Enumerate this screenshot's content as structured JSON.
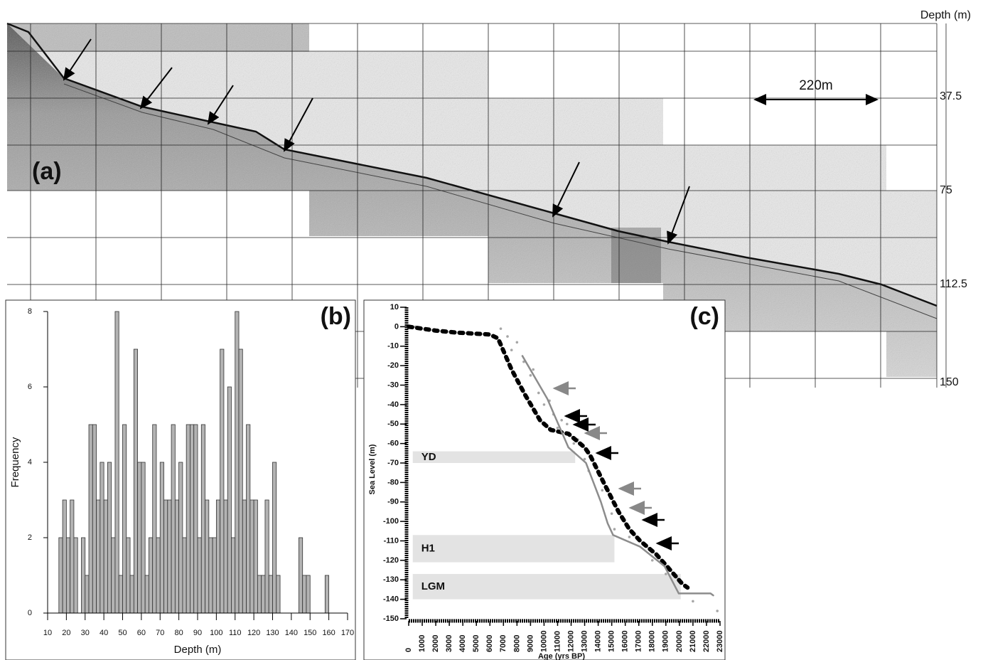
{
  "profile": {
    "label": "(a)",
    "depth_axis_title": "Depth (m)",
    "depth_ticks": [
      "37.5",
      "75",
      "112.5",
      "150"
    ],
    "scale_bar": "220m"
  },
  "chart_data": [
    {
      "type": "histogram",
      "label": "(b)",
      "x_label": "Depth (m)",
      "y_label": "Frequency",
      "color": "#b3b3b3",
      "bins": [
        16,
        18,
        20,
        22,
        24,
        26,
        28,
        30,
        32,
        34,
        36,
        38,
        40,
        42,
        44,
        46,
        48,
        50,
        52,
        54,
        56,
        58,
        60,
        62,
        64,
        66,
        68,
        70,
        72,
        74,
        76,
        78,
        80,
        82,
        84,
        86,
        88,
        90,
        92,
        94,
        96,
        98,
        100,
        102,
        104,
        106,
        108,
        110,
        112,
        114,
        116,
        118,
        120,
        122,
        124,
        126,
        128,
        130,
        132,
        134,
        136,
        138,
        140,
        142,
        144,
        146,
        148,
        150,
        152,
        154,
        156,
        158,
        160
      ],
      "values": [
        2,
        3,
        2,
        3,
        2,
        0,
        2,
        1,
        5,
        5,
        3,
        4,
        3,
        4,
        2,
        8,
        1,
        5,
        2,
        1,
        7,
        4,
        4,
        1,
        2,
        5,
        2,
        4,
        3,
        3,
        5,
        3,
        4,
        2,
        5,
        5,
        5,
        2,
        5,
        3,
        2,
        2,
        3,
        7,
        3,
        6,
        2,
        8,
        7,
        3,
        5,
        3,
        3,
        1,
        1,
        3,
        1,
        4,
        1,
        0,
        0,
        0,
        0,
        0,
        2,
        1,
        1,
        0,
        0,
        0,
        0,
        1
      ],
      "xlim": [
        10,
        170
      ],
      "xticks": [
        10,
        20,
        30,
        40,
        50,
        60,
        70,
        80,
        90,
        100,
        110,
        120,
        130,
        140,
        150,
        160,
        170
      ],
      "ylim": [
        0,
        8
      ],
      "yticks": [
        0,
        2,
        4,
        6,
        8
      ]
    },
    {
      "type": "line",
      "label": "(c)",
      "x_label": "Age (yrs BP)",
      "y_label": "Sea Level (m)",
      "xlim": [
        0,
        23000
      ],
      "xticks": [
        0,
        1000,
        2000,
        3000,
        4000,
        5000,
        6000,
        7000,
        8000,
        9000,
        10000,
        11000,
        12000,
        13000,
        14000,
        15000,
        16000,
        17000,
        18000,
        19000,
        20000,
        21000,
        22000,
        23000
      ],
      "ylim": [
        -150,
        10
      ],
      "yticks": [
        -150,
        -140,
        -130,
        -120,
        -110,
        -100,
        -90,
        -80,
        -70,
        -60,
        -50,
        -40,
        -30,
        -20,
        -10,
        0,
        10
      ],
      "bands": [
        {
          "label": "YD",
          "ylim": [
            -64,
            -70
          ],
          "xlim": [
            300,
            12300
          ]
        },
        {
          "label": "H1",
          "ylim": [
            -107,
            -121
          ],
          "xlim": [
            300,
            15200
          ]
        },
        {
          "label": "LGM",
          "ylim": [
            -127,
            -140
          ],
          "xlim": [
            300,
            20100
          ]
        }
      ],
      "series": [
        {
          "style": "points",
          "color": "#a6a6a6",
          "x": [
            500,
            6800,
            7300,
            7600,
            8000,
            8500,
            9000,
            9200,
            9600,
            10000,
            10400,
            10700,
            11000,
            11300,
            11700,
            12200,
            12500,
            13000,
            13300,
            14300,
            15000,
            15200,
            16300,
            17500,
            18000,
            19000,
            21000,
            22800
          ],
          "values": [
            0,
            -1,
            -5,
            -12,
            -8,
            -18,
            -25,
            -22,
            -34,
            -40,
            -38,
            -45,
            -52,
            -48,
            -50,
            -60,
            -58,
            -68,
            -74,
            -84,
            -96,
            -104,
            -108,
            -112,
            -120,
            -127,
            -141,
            -146
          ]
        },
        {
          "style": "dashed",
          "color": "#000000",
          "x": [
            0,
            2000,
            3500,
            6000,
            6600,
            7600,
            8600,
            9700,
            10500,
            11800,
            13000,
            13400,
            14400,
            15500,
            16300,
            17100,
            18300,
            19200,
            20200,
            20600
          ],
          "values": [
            0,
            -2,
            -3,
            -4,
            -6,
            -22,
            -35,
            -48,
            -53,
            -55,
            -62,
            -66,
            -80,
            -95,
            -104,
            -110,
            -117,
            -124,
            -132,
            -134
          ]
        },
        {
          "style": "solid",
          "color": "#8c8c8c",
          "x": [
            8400,
            10240,
            11800,
            13100,
            14200,
            14700,
            15100,
            17100,
            18900,
            19950,
            22300,
            22500
          ],
          "values": [
            -15,
            -37,
            -62,
            -70,
            -90,
            -101,
            -107,
            -113,
            -123,
            -137,
            -137,
            -138
          ]
        }
      ]
    }
  ]
}
